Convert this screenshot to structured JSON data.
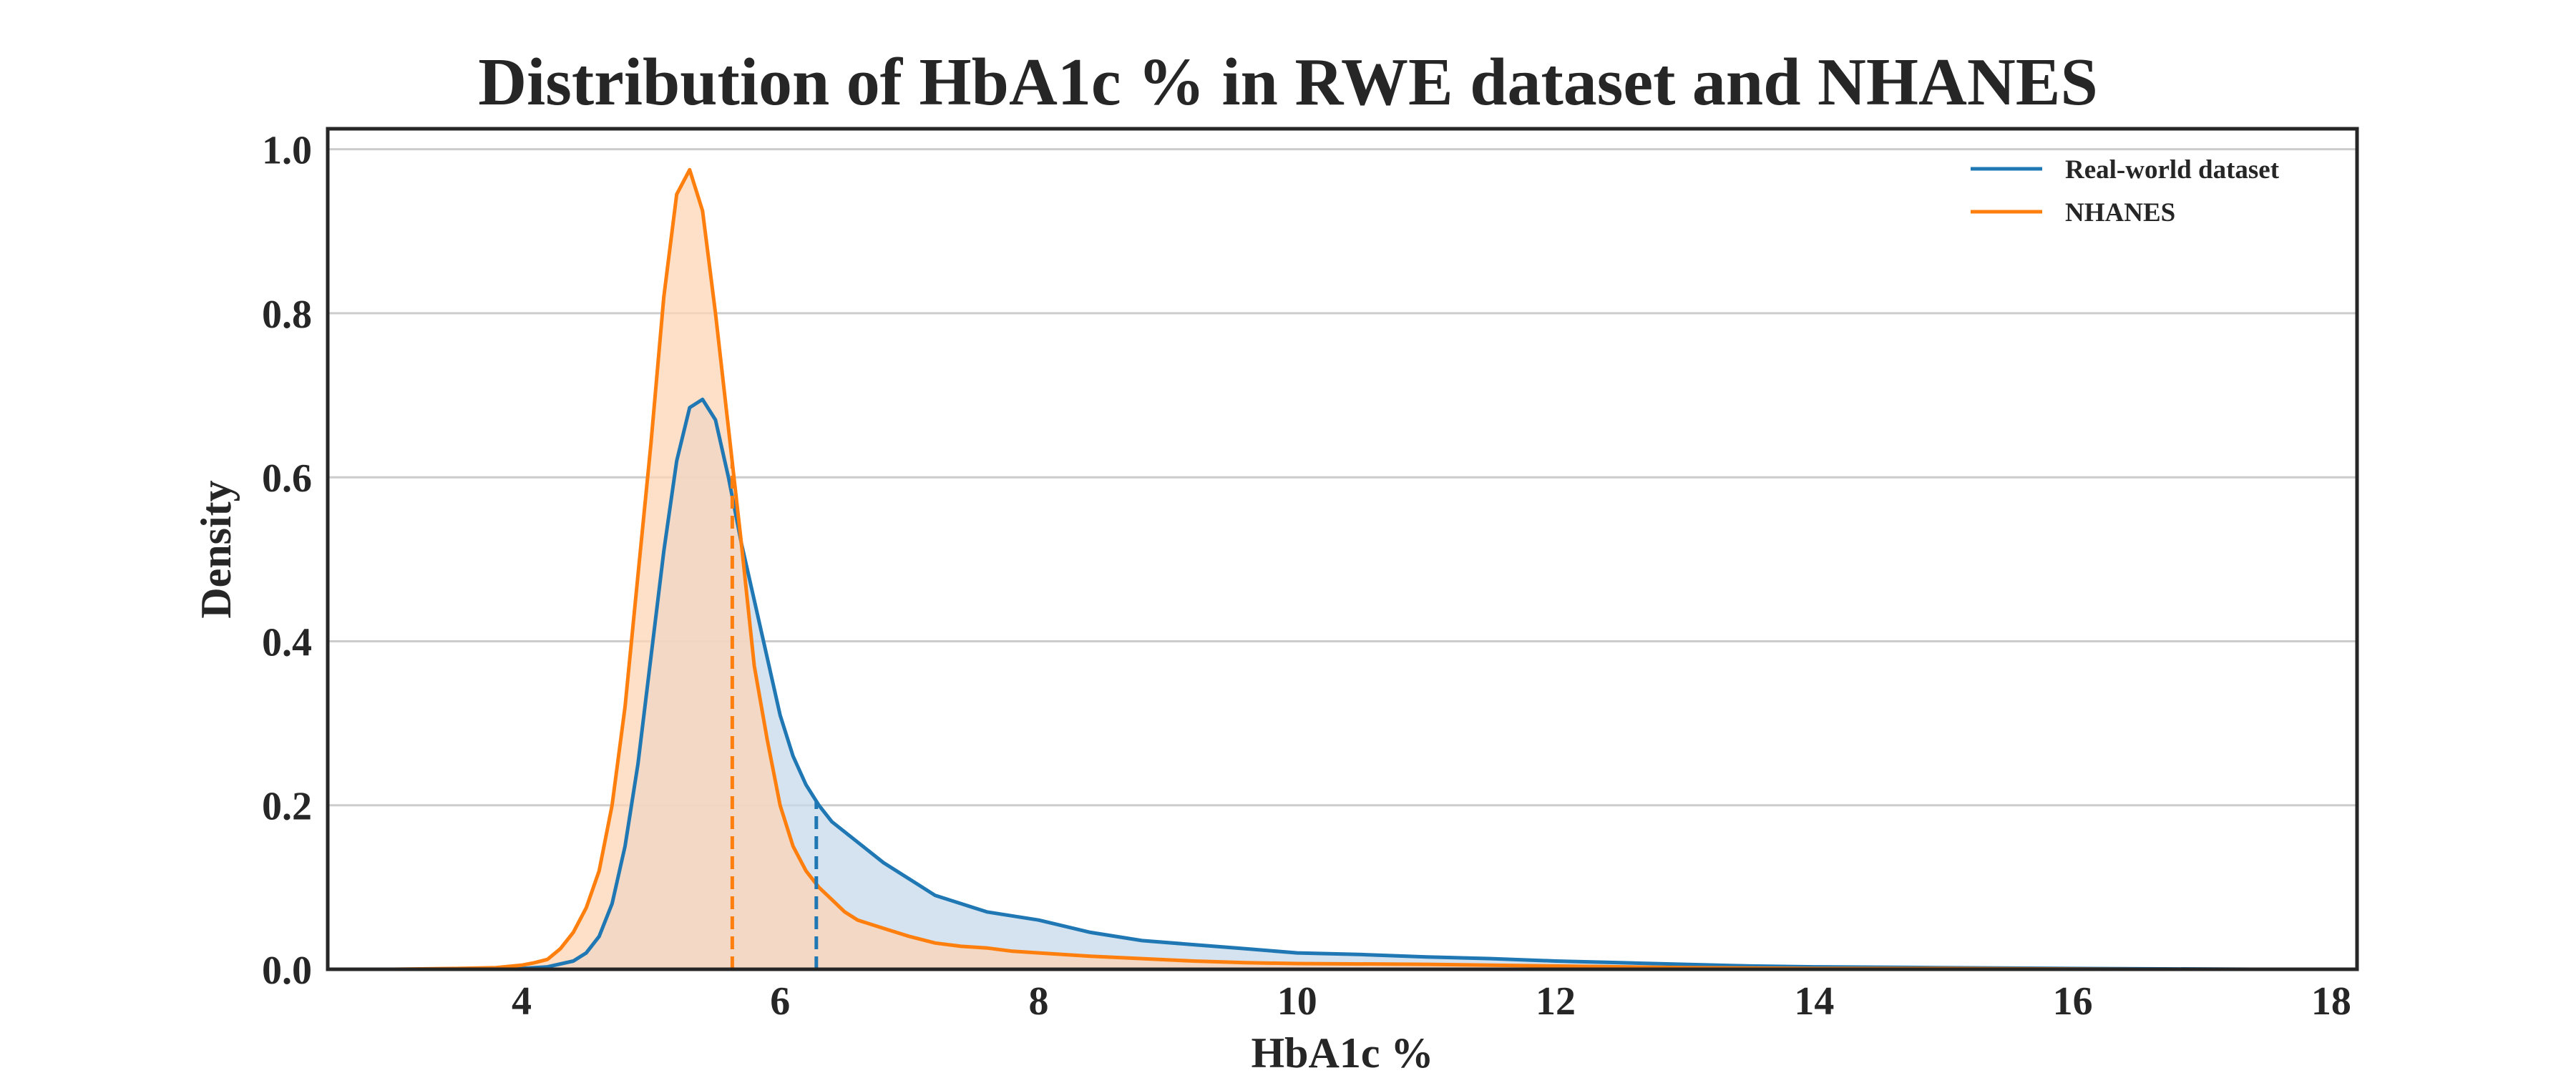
{
  "chart_data": {
    "type": "area",
    "title": "Distribution of HbA1c % in RWE dataset and NHANES",
    "xlabel": "HbA1c %",
    "ylabel": "Density",
    "xlim": [
      2.5,
      18.2
    ],
    "ylim": [
      0,
      1.025
    ],
    "xticks": [
      4,
      6,
      8,
      10,
      12,
      14,
      16,
      18
    ],
    "yticks": [
      0.0,
      0.2,
      0.4,
      0.6,
      0.8,
      1.0
    ],
    "grid": "horizontal",
    "legend_position": "top-right",
    "series": [
      {
        "name": "Real-world dataset",
        "color": "#1f77b4",
        "fill_color": "#c5d9ea",
        "median": 6.28,
        "x": [
          3.0,
          3.5,
          4.0,
          4.2,
          4.4,
          4.5,
          4.6,
          4.7,
          4.8,
          4.9,
          5.0,
          5.1,
          5.2,
          5.3,
          5.4,
          5.5,
          5.6,
          5.7,
          5.8,
          5.9,
          6.0,
          6.1,
          6.2,
          6.3,
          6.4,
          6.6,
          6.8,
          7.0,
          7.2,
          7.4,
          7.6,
          8.0,
          8.4,
          8.8,
          9.2,
          9.6,
          10.0,
          10.5,
          11.0,
          11.5,
          12.0,
          12.5,
          13.0,
          13.5,
          14.0,
          15.0,
          16.0,
          17.4
        ],
        "y": [
          0.0,
          0.0,
          0.001,
          0.003,
          0.01,
          0.02,
          0.04,
          0.08,
          0.15,
          0.25,
          0.38,
          0.51,
          0.62,
          0.685,
          0.695,
          0.67,
          0.6,
          0.52,
          0.45,
          0.38,
          0.31,
          0.26,
          0.225,
          0.2,
          0.18,
          0.155,
          0.13,
          0.11,
          0.09,
          0.08,
          0.07,
          0.06,
          0.045,
          0.035,
          0.03,
          0.025,
          0.02,
          0.018,
          0.015,
          0.013,
          0.01,
          0.008,
          0.006,
          0.004,
          0.003,
          0.002,
          0.001,
          0.0
        ]
      },
      {
        "name": "NHANES",
        "color": "#ff7f0e",
        "fill_color": "#fdd5b7",
        "median": 5.63,
        "x": [
          3.0,
          3.5,
          3.8,
          4.0,
          4.1,
          4.2,
          4.3,
          4.4,
          4.5,
          4.6,
          4.7,
          4.8,
          4.9,
          5.0,
          5.1,
          5.2,
          5.3,
          5.4,
          5.5,
          5.6,
          5.7,
          5.8,
          5.9,
          6.0,
          6.1,
          6.2,
          6.3,
          6.4,
          6.5,
          6.6,
          6.8,
          7.0,
          7.2,
          7.4,
          7.6,
          7.8,
          8.0,
          8.4,
          8.8,
          9.2,
          9.6,
          10.0,
          11.0,
          12.0,
          13.0,
          14.0,
          15.0,
          16.5
        ],
        "y": [
          0.0,
          0.001,
          0.002,
          0.005,
          0.008,
          0.012,
          0.025,
          0.045,
          0.075,
          0.12,
          0.2,
          0.32,
          0.48,
          0.64,
          0.82,
          0.945,
          0.975,
          0.925,
          0.8,
          0.66,
          0.52,
          0.37,
          0.28,
          0.2,
          0.15,
          0.12,
          0.1,
          0.085,
          0.07,
          0.06,
          0.05,
          0.04,
          0.032,
          0.028,
          0.026,
          0.022,
          0.02,
          0.016,
          0.013,
          0.01,
          0.008,
          0.007,
          0.006,
          0.004,
          0.002,
          0.001,
          0.001,
          0.0
        ]
      }
    ]
  }
}
